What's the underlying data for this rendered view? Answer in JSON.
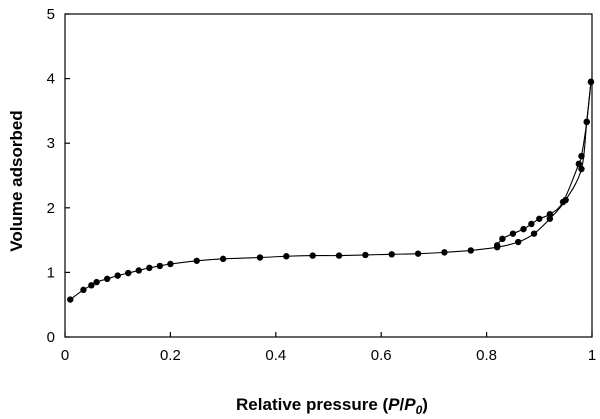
{
  "chart_data": {
    "type": "line",
    "title": "",
    "xlabel": {
      "prefix": "Relative pressure (",
      "var1": "P",
      "slash": "/",
      "var2": "P",
      "sub": "0",
      "suffix": ")"
    },
    "ylabel": "Volume adsorbed",
    "xlim": [
      0,
      1
    ],
    "ylim": [
      0,
      5
    ],
    "xticks": [
      0,
      0.2,
      0.4,
      0.6,
      0.8,
      1
    ],
    "xtick_labels": [
      "0",
      "0.2",
      "0.4",
      "0.6",
      "0.8",
      "1"
    ],
    "yticks": [
      0,
      1,
      2,
      3,
      4,
      5
    ],
    "ytick_labels": [
      "0",
      "1",
      "2",
      "3",
      "4",
      "5"
    ],
    "grid": false,
    "series": [
      {
        "x": [
          0.01,
          0.035,
          0.05,
          0.06,
          0.08,
          0.1,
          0.12,
          0.14,
          0.16,
          0.18,
          0.2,
          0.25,
          0.3,
          0.37,
          0.42,
          0.47,
          0.52,
          0.57,
          0.62,
          0.67,
          0.72,
          0.77,
          0.82,
          0.86,
          0.89,
          0.92,
          0.95,
          0.98,
          0.99,
          0.998
        ],
        "y": [
          0.58,
          0.73,
          0.8,
          0.85,
          0.9,
          0.95,
          0.99,
          1.03,
          1.07,
          1.1,
          1.13,
          1.18,
          1.21,
          1.23,
          1.25,
          1.26,
          1.26,
          1.27,
          1.28,
          1.29,
          1.31,
          1.34,
          1.39,
          1.47,
          1.6,
          1.83,
          2.12,
          2.6,
          3.33,
          3.95
        ]
      },
      {
        "x": [
          0.998,
          0.99,
          0.98,
          0.975,
          0.945,
          0.92,
          0.9,
          0.885,
          0.87,
          0.85,
          0.83,
          0.82
        ],
        "y": [
          3.95,
          3.33,
          2.8,
          2.68,
          2.09,
          1.9,
          1.83,
          1.75,
          1.67,
          1.6,
          1.52,
          1.42
        ]
      }
    ]
  }
}
